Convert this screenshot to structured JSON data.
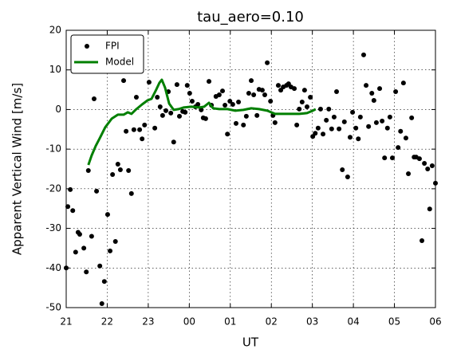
{
  "chart_data": {
    "type": "scatter",
    "title": "tau_aero=0.10",
    "x_label": "UT",
    "y_label": "Apparent Vertical Wind [m/s]",
    "xlim": [
      21,
      30
    ],
    "ylim": [
      -50,
      20
    ],
    "xticks": [
      21,
      22,
      23,
      {
        "value": 24,
        "label": "00"
      },
      {
        "value": 25,
        "label": "01"
      },
      {
        "value": 26,
        "label": "02"
      },
      {
        "value": 27,
        "label": "03"
      },
      {
        "value": 28,
        "label": "04"
      },
      {
        "value": 29,
        "label": "05"
      },
      {
        "value": 30,
        "label": "06"
      }
    ],
    "yticks": [
      -50,
      -40,
      -30,
      -20,
      -10,
      0,
      10,
      20
    ],
    "grid": true,
    "legend": "upper left",
    "series": [
      {
        "name": "FPI",
        "type": "scatter",
        "color": "#000000",
        "x": [
          21.0,
          21.04,
          21.1,
          21.16,
          21.23,
          21.29,
          21.33,
          21.43,
          21.49,
          21.54,
          21.62,
          21.68,
          21.74,
          21.82,
          21.87,
          21.93,
          22.01,
          22.07,
          22.13,
          22.2,
          22.26,
          22.32,
          22.4,
          22.46,
          22.52,
          22.59,
          22.65,
          22.71,
          22.79,
          22.85,
          22.91,
          23.02,
          23.16,
          23.22,
          23.29,
          23.35,
          23.43,
          23.49,
          23.55,
          23.62,
          23.7,
          23.76,
          23.84,
          23.9,
          23.95,
          24.01,
          24.07,
          24.15,
          24.21,
          24.29,
          24.34,
          24.4,
          24.48,
          24.54,
          24.65,
          24.73,
          24.81,
          24.87,
          24.93,
          24.99,
          25.06,
          25.14,
          25.2,
          25.32,
          25.39,
          25.45,
          25.51,
          25.57,
          25.65,
          25.7,
          25.78,
          25.84,
          25.9,
          25.98,
          26.04,
          26.09,
          26.17,
          26.23,
          26.29,
          26.37,
          26.42,
          26.48,
          26.56,
          26.62,
          26.68,
          26.75,
          26.81,
          26.87,
          26.95,
          27.01,
          27.07,
          27.14,
          27.2,
          27.26,
          27.34,
          27.4,
          27.47,
          27.53,
          27.59,
          27.65,
          27.73,
          27.78,
          27.86,
          27.92,
          27.98,
          28.06,
          28.12,
          28.17,
          28.25,
          28.31,
          28.37,
          28.45,
          28.5,
          28.56,
          28.64,
          28.7,
          28.76,
          28.83,
          28.89,
          28.95,
          29.03,
          29.09,
          29.15,
          29.22,
          29.28,
          29.34,
          29.42,
          29.48,
          29.53,
          29.61,
          29.67,
          29.73,
          29.81,
          29.86,
          29.92,
          30.0
        ],
        "values": [
          -40,
          -24.5,
          -20.2,
          -25.5,
          -36,
          -31,
          -31.5,
          -35,
          -41,
          -15.4,
          -32,
          2.7,
          -20.6,
          -39.5,
          -49,
          -43.4,
          -26.5,
          -35.7,
          -16.4,
          -33.3,
          -13.8,
          -15.2,
          7.3,
          -5.5,
          -15.4,
          -21.2,
          -5.1,
          3.1,
          -5.1,
          -7.4,
          -3.9,
          6.9,
          -4.7,
          3.1,
          0.7,
          -1.5,
          -0.3,
          4.5,
          -0.9,
          -8.2,
          6.3,
          -1.7,
          -0.5,
          -0.7,
          6.1,
          4.1,
          2.1,
          0.7,
          1.3,
          -0.1,
          -2.1,
          -2.3,
          7.1,
          1.1,
          3.3,
          3.7,
          4.7,
          1.1,
          -6.2,
          2.1,
          1.3,
          -3.5,
          1.9,
          -3.9,
          -1.7,
          4.1,
          7.3,
          3.7,
          -1.5,
          5.1,
          4.9,
          3.7,
          11.8,
          2.1,
          -1.5,
          -3.3,
          6.1,
          4.9,
          5.7,
          6.1,
          6.5,
          5.7,
          5.3,
          -3.9,
          0.1,
          1.9,
          4.9,
          0.7,
          3.1,
          -6.8,
          -6.0,
          -4.7,
          0.1,
          -6.2,
          -2.7,
          0.1,
          -4.9,
          -1.9,
          4.5,
          -4.9,
          -15.2,
          -3.1,
          -17,
          -7,
          -0.7,
          -4.7,
          -7.4,
          -1.9,
          13.8,
          6.1,
          -4.3,
          4.1,
          2.3,
          -3.3,
          5.3,
          -2.9,
          -12.2,
          -4.7,
          -1.9,
          -12.2,
          4.5,
          -9.6,
          -5.5,
          6.7,
          -7.2,
          -16.2,
          -2.1,
          -12,
          -12,
          -12.4,
          -33.1,
          -13.6,
          -15,
          -25.1,
          -14.2,
          -18.6
        ]
      },
      {
        "name": "Model",
        "type": "line",
        "color": "#007f00",
        "x": [
          21.54,
          21.62,
          21.72,
          21.82,
          21.95,
          22.11,
          22.26,
          22.4,
          22.5,
          22.59,
          22.69,
          22.85,
          22.98,
          23.08,
          23.18,
          23.27,
          23.33,
          23.41,
          23.51,
          23.62,
          23.74,
          23.86,
          24.05,
          24.25,
          24.36,
          24.48,
          24.58,
          24.73,
          24.93,
          25.12,
          25.32,
          25.51,
          25.7,
          25.9,
          26.09,
          26.38,
          26.68,
          26.87,
          27.01,
          27.08
        ],
        "values": [
          -14.0,
          -11.6,
          -9.2,
          -7.2,
          -4.5,
          -2.3,
          -1.3,
          -1.3,
          -0.7,
          -1.1,
          -0.1,
          1.3,
          2.3,
          2.7,
          4.7,
          6.7,
          7.5,
          5.5,
          1.5,
          -0.1,
          0.1,
          0.5,
          0.7,
          0.5,
          0.7,
          1.7,
          0.3,
          0.1,
          0.1,
          -0.3,
          -0.1,
          0.3,
          0.1,
          -0.3,
          -1.1,
          -1.1,
          -1.1,
          -0.9,
          -0.3,
          0.1
        ]
      }
    ]
  }
}
